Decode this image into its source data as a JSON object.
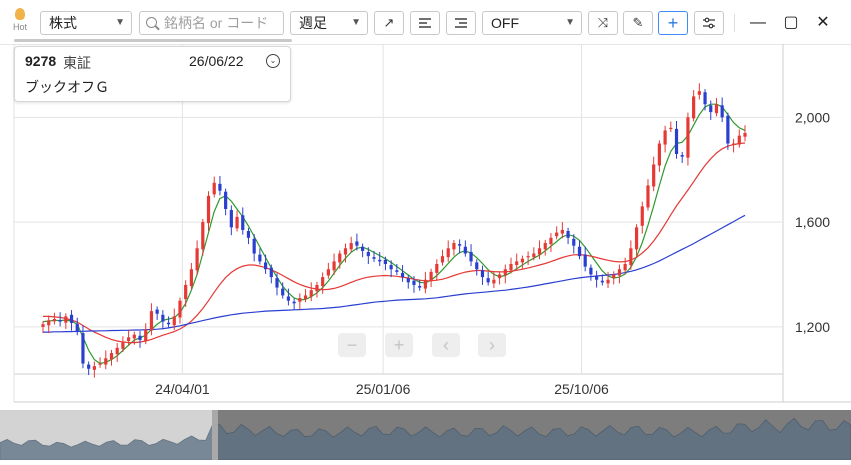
{
  "toolbar": {
    "hot_label": "Hot",
    "market_select": "株式",
    "search_placeholder": "銘柄名 or コード",
    "period_select": "週足",
    "indicator_select": "OFF",
    "icons": [
      "trend-line-icon",
      "align-left-icon",
      "align-right-icon",
      "shuffle-icon",
      "pencil-icon",
      "crosshair-icon",
      "sliders-icon"
    ]
  },
  "window": {
    "minimize": "—",
    "maximize": "▢",
    "close": "✕"
  },
  "info_card": {
    "code": "9278",
    "market": "東証",
    "date": "26/06/22",
    "name": "ブックオフＧ"
  },
  "nav": {
    "zoom_out": "−",
    "zoom_in": "+",
    "prev": "‹",
    "next": "›"
  },
  "colors": {
    "up": "#e53935",
    "down": "#2a3fd0",
    "ma_short": "#2e9a2e",
    "ma_mid": "#e53935",
    "ma_long": "#2a3fd0",
    "overview_fill": "#5b6f82",
    "accent": "#3d8bfd"
  },
  "chart_data": {
    "type": "candlestick",
    "y_axis": {
      "ticks": [
        "1,200",
        "1,600",
        "2,000"
      ],
      "tick_values": [
        1200,
        1600,
        2000
      ],
      "range": [
        1020,
        2280
      ],
      "side": "right"
    },
    "x_axis": {
      "ticks": [
        "24/04/01",
        "25/01/06",
        "25/10/06"
      ]
    },
    "grid": true,
    "series": [
      {
        "name": "",
        "kind": "close",
        "values": [
          1210,
          1225,
          1230,
          1220,
          1240,
          1215,
          1180,
          1060,
          1040,
          1050,
          1060,
          1080,
          1100,
          1120,
          1140,
          1160,
          1170,
          1150,
          1190,
          1260,
          1250,
          1220,
          1210,
          1240,
          1300,
          1360,
          1420,
          1500,
          1600,
          1700,
          1750,
          1720,
          1650,
          1580,
          1620,
          1570,
          1540,
          1480,
          1450,
          1420,
          1390,
          1350,
          1320,
          1300,
          1290,
          1310,
          1320,
          1340,
          1360,
          1390,
          1420,
          1450,
          1480,
          1500,
          1520,
          1510,
          1490,
          1470,
          1460,
          1450,
          1440,
          1420,
          1410,
          1390,
          1370,
          1360,
          1350,
          1380,
          1410,
          1440,
          1470,
          1500,
          1520,
          1510,
          1480,
          1450,
          1420,
          1390,
          1370,
          1380,
          1400,
          1420,
          1440,
          1450,
          1460,
          1470,
          1480,
          1500,
          1520,
          1540,
          1560,
          1570,
          1540,
          1510,
          1470,
          1430,
          1400,
          1380,
          1370,
          1380,
          1400,
          1420,
          1440,
          1500,
          1580,
          1660,
          1740,
          1820,
          1900,
          1950,
          1960,
          1860,
          1850,
          2000,
          2080,
          2100,
          2050,
          2020,
          2050,
          2000,
          1900,
          1900,
          1930,
          1940
        ]
      },
      {
        "name": "",
        "kind": "ma_short",
        "values": [
          1220,
          1222,
          1225,
          1224,
          1226,
          1222,
          1210,
          1160,
          1110,
          1075,
          1060,
          1065,
          1075,
          1090,
          1110,
          1130,
          1150,
          1158,
          1168,
          1190,
          1210,
          1225,
          1230,
          1235,
          1255,
          1290,
          1340,
          1400,
          1480,
          1560,
          1640,
          1690,
          1700,
          1680,
          1650,
          1620,
          1585,
          1545,
          1505,
          1465,
          1425,
          1390,
          1355,
          1330,
          1310,
          1303,
          1305,
          1315,
          1330,
          1350,
          1375,
          1405,
          1435,
          1462,
          1485,
          1500,
          1504,
          1496,
          1484,
          1472,
          1460,
          1446,
          1430,
          1414,
          1398,
          1382,
          1370,
          1368,
          1378,
          1396,
          1418,
          1442,
          1466,
          1484,
          1490,
          1482,
          1464,
          1442,
          1418,
          1400,
          1392,
          1396,
          1408,
          1422,
          1436,
          1450,
          1462,
          1474,
          1490,
          1508,
          1526,
          1544,
          1552,
          1546,
          1530,
          1504,
          1474,
          1444,
          1414,
          1394,
          1386,
          1390,
          1402,
          1428,
          1468,
          1522,
          1588,
          1662,
          1740,
          1814,
          1870,
          1900,
          1905,
          1930,
          1970,
          2010,
          2040,
          2050,
          2050,
          2040,
          2010,
          1980,
          1960,
          1950
        ]
      },
      {
        "name": "",
        "kind": "ma_mid",
        "values": [
          1240,
          1240,
          1238,
          1236,
          1232,
          1226,
          1218,
          1205,
          1192,
          1180,
          1170,
          1160,
          1152,
          1146,
          1142,
          1140,
          1140,
          1142,
          1146,
          1152,
          1160,
          1168,
          1175,
          1182,
          1192,
          1205,
          1222,
          1244,
          1270,
          1300,
          1332,
          1362,
          1388,
          1408,
          1422,
          1432,
          1436,
          1436,
          1432,
          1426,
          1418,
          1408,
          1396,
          1384,
          1372,
          1362,
          1354,
          1348,
          1344,
          1342,
          1343,
          1347,
          1353,
          1361,
          1370,
          1378,
          1385,
          1390,
          1393,
          1395,
          1396,
          1395,
          1393,
          1390,
          1386,
          1382,
          1378,
          1376,
          1376,
          1378,
          1382,
          1388,
          1396,
          1403,
          1409,
          1413,
          1415,
          1415,
          1413,
          1411,
          1410,
          1410,
          1412,
          1416,
          1420,
          1425,
          1430,
          1436,
          1442,
          1449,
          1457,
          1465,
          1471,
          1475,
          1476,
          1474,
          1470,
          1465,
          1459,
          1454,
          1450,
          1448,
          1449,
          1455,
          1466,
          1482,
          1502,
          1528,
          1558,
          1592,
          1628,
          1662,
          1692,
          1722,
          1754,
          1786,
          1816,
          1842,
          1864,
          1880,
          1890,
          1896,
          1900,
          1902
        ]
      },
      {
        "name": "",
        "kind": "ma_long",
        "values": [
          1180,
          1180,
          1181,
          1181,
          1182,
          1182,
          1183,
          1183,
          1184,
          1184,
          1185,
          1185,
          1186,
          1186,
          1187,
          1187,
          1188,
          1188,
          1189,
          1190,
          1191,
          1193,
          1196,
          1200,
          1204,
          1209,
          1214,
          1219,
          1224,
          1229,
          1234,
          1238,
          1242,
          1246,
          1249,
          1252,
          1254,
          1256,
          1258,
          1260,
          1261,
          1262,
          1263,
          1264,
          1265,
          1266,
          1267,
          1268,
          1269,
          1270,
          1272,
          1274,
          1276,
          1279,
          1282,
          1285,
          1288,
          1291,
          1294,
          1296,
          1298,
          1300,
          1302,
          1303,
          1304,
          1305,
          1306,
          1307,
          1309,
          1311,
          1314,
          1317,
          1320,
          1323,
          1326,
          1328,
          1330,
          1332,
          1334,
          1336,
          1338,
          1340,
          1343,
          1346,
          1349,
          1352,
          1356,
          1360,
          1364,
          1368,
          1372,
          1376,
          1380,
          1384,
          1387,
          1390,
          1392,
          1394,
          1396,
          1398,
          1400,
          1403,
          1407,
          1412,
          1418,
          1425,
          1433,
          1442,
          1452,
          1463,
          1474,
          1485,
          1496,
          1507,
          1518,
          1530,
          1542,
          1554,
          1566,
          1578,
          1590,
          1602,
          1614,
          1626
        ]
      }
    ]
  }
}
